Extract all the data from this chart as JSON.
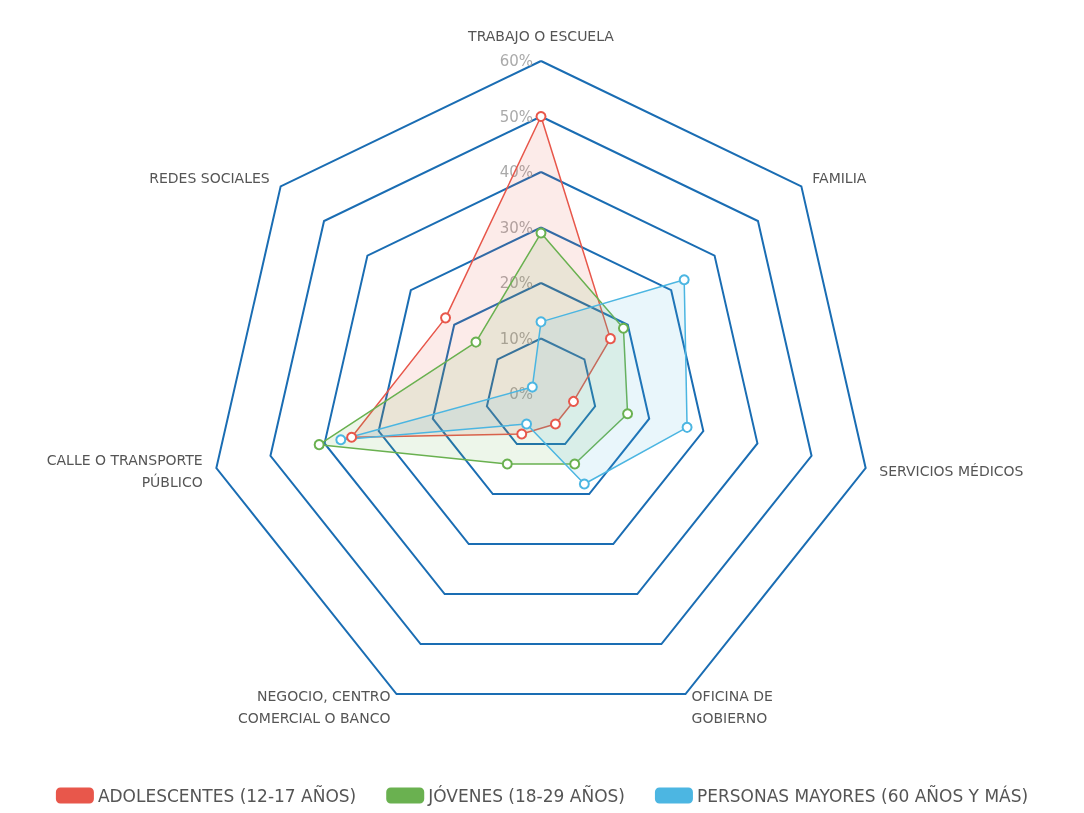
{
  "chart_data": {
    "type": "radar",
    "categories": [
      "TRABAJO O ESCUELA",
      "FAMILIA",
      "SERVICIOS MÉDICOS",
      "OFICINA DE GOBIERNO",
      "NEGOCIO, CENTRO COMERCIAL O BANCO",
      "CALLE O TRANSPORTE PÚBLICO",
      "REDES SOCIALES"
    ],
    "series": [
      {
        "name": "ADOLESCENTES (12-17 AÑOS)",
        "color": "#e8574b",
        "values": [
          50,
          16,
          6,
          6,
          8,
          35,
          22
        ]
      },
      {
        "name": "JÓVENES (18-29 AÑOS)",
        "color": "#6ab150",
        "values": [
          29,
          19,
          16,
          14,
          14,
          41,
          15
        ]
      },
      {
        "name": "PERSONAS MAYORES (60 AÑOS Y MÁS)",
        "color": "#4cb6e2",
        "values": [
          13,
          33,
          27,
          18,
          6,
          37,
          2
        ]
      }
    ],
    "ylim": [
      0,
      60
    ],
    "yticks": [
      {
        "value": 0,
        "label": "0%"
      },
      {
        "value": 10,
        "label": "10%"
      },
      {
        "value": 20,
        "label": "20%"
      },
      {
        "value": 30,
        "label": "30%"
      },
      {
        "value": 40,
        "label": "40%"
      },
      {
        "value": 50,
        "label": "50%"
      },
      {
        "value": 60,
        "label": "60%"
      }
    ],
    "legend": "bottom",
    "marker": "circle",
    "grid": true
  }
}
